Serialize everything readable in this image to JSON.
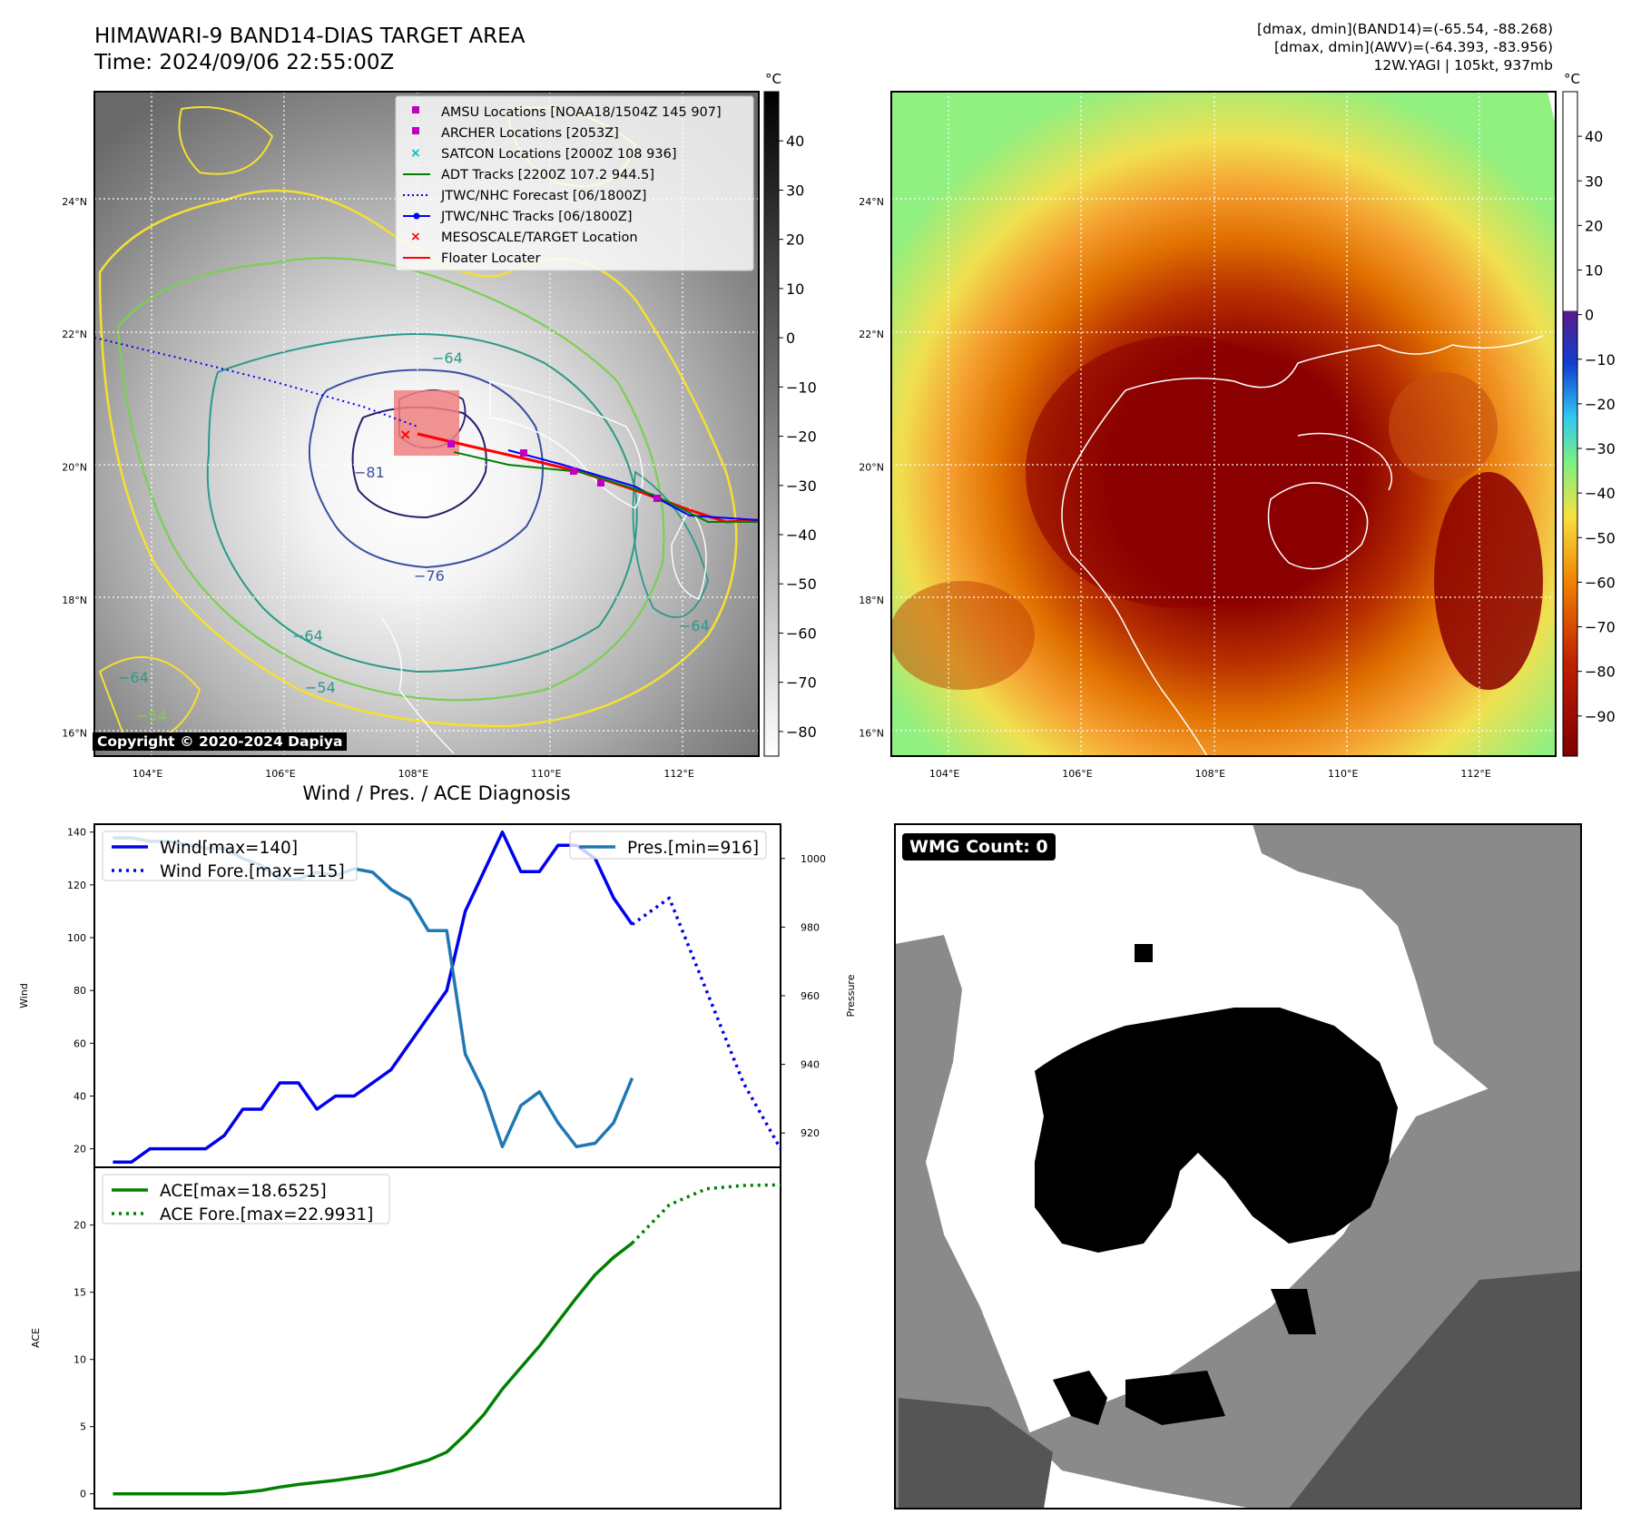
{
  "header": {
    "title_line1": "HIMAWARI-9 BAND14-DIAS TARGET AREA",
    "title_line2": "Time: 2024/09/06 22:55:00Z",
    "info_line1": "[dmax, dmin](BAND14)=(-65.54, -88.268)",
    "info_line2": "[dmax, dmin](AWV)=(-64.393, -83.956)",
    "info_line3": "12W.YAGI | 105kt, 937mb"
  },
  "map_axes": {
    "lat_labels": [
      "24°N",
      "22°N",
      "20°N",
      "18°N",
      "16°N"
    ],
    "lat_values": [
      24,
      22,
      20,
      18,
      16
    ],
    "lon_labels": [
      "104°E",
      "106°E",
      "108°E",
      "110°E",
      "112°E"
    ],
    "lon_values": [
      104,
      106,
      108,
      110,
      112
    ],
    "lon_range": [
      103.2,
      113.2
    ],
    "lat_range": [
      15.65,
      25.65
    ]
  },
  "ir_map": {
    "colorbar_unit": "°C",
    "colorbar_ticks": [
      "40",
      "30",
      "20",
      "10",
      "0",
      "−10",
      "−20",
      "−30",
      "−40",
      "−50",
      "−60",
      "−70",
      "−80"
    ],
    "colorbar_values": [
      40,
      30,
      20,
      10,
      0,
      -10,
      -20,
      -30,
      -40,
      -50,
      -60,
      -70,
      -80
    ],
    "colorbar_range": [
      -85,
      50
    ],
    "contour_labels": [
      "−64",
      "−81",
      "−76",
      "−64",
      "−54",
      "−64",
      "−64",
      "−54"
    ],
    "copyright": "Copyright © 2020-2024 Dapiya",
    "legend": [
      {
        "label": "AMSU Locations [NOAA18/1504Z 145 907]",
        "marker": "square",
        "color": "#c000c0"
      },
      {
        "label": "ARCHER Locations [2053Z]",
        "marker": "square",
        "color": "#c000c0"
      },
      {
        "label": "SATCON Locations [2000Z 108 936]",
        "marker": "x",
        "color": "#00c0c0"
      },
      {
        "label": "ADT Tracks [2200Z 107.2 944.5]",
        "marker": "line",
        "color": "#008000"
      },
      {
        "label": "JTWC/NHC Forecast [06/1800Z]",
        "marker": "dotted",
        "color": "#0000ff"
      },
      {
        "label": "JTWC/NHC Tracks [06/1800Z]",
        "marker": "line-dot",
        "color": "#0000ff"
      },
      {
        "label": "MESOSCALE/TARGET Location",
        "marker": "x",
        "color": "#ff0000"
      },
      {
        "label": "Floater Locater",
        "marker": "line",
        "color": "#ff0000"
      }
    ]
  },
  "awv_map": {
    "colorbar_unit": "°C",
    "colorbar_ticks": [
      "40",
      "30",
      "20",
      "10",
      "0",
      "−10",
      "−20",
      "−30",
      "−40",
      "−50",
      "−60",
      "−70",
      "−80",
      "−90"
    ],
    "colorbar_values": [
      40,
      30,
      20,
      10,
      0,
      -10,
      -20,
      -30,
      -40,
      -50,
      -60,
      -70,
      -80,
      -90
    ],
    "colorbar_range": [
      -99,
      50
    ]
  },
  "diagnosis": {
    "title": "Wind / Pres. / ACE Diagnosis"
  },
  "chart_data": [
    {
      "type": "line",
      "title": "Wind / Pres. / ACE Diagnosis",
      "ylabel": "Wind",
      "y2label": "Pressure",
      "ylim": [
        13,
        143
      ],
      "y2lim": [
        910,
        1010
      ],
      "y_ticks": [
        20,
        40,
        60,
        80,
        100,
        120,
        140
      ],
      "y2_ticks": [
        920,
        940,
        960,
        980,
        1000
      ],
      "series": [
        {
          "name": "Wind[max=140]",
          "axis": "left",
          "style": "solid",
          "color": "#0000ee",
          "values": [
            15,
            15,
            20,
            20,
            20,
            20,
            25,
            35,
            35,
            45,
            45,
            35,
            40,
            40,
            45,
            50,
            60,
            70,
            80,
            110,
            125,
            140,
            125,
            125,
            135,
            135,
            130,
            115,
            105
          ]
        },
        {
          "name": "Wind Fore.[max=115]",
          "axis": "left",
          "style": "dotted",
          "color": "#0000ee",
          "x_start": 28,
          "x_step": 2,
          "values": [
            105,
            115,
            80,
            45,
            20
          ]
        },
        {
          "name": "Pres.[min=916]",
          "axis": "right",
          "style": "solid",
          "color": "#1f77b4",
          "values": [
            1006,
            1006,
            1005,
            1005,
            1004,
            1003,
            1003,
            1000,
            998,
            994,
            994,
            996,
            995,
            997,
            996,
            991,
            988,
            979,
            979,
            943,
            932,
            916,
            928,
            932,
            923,
            916,
            917,
            923,
            936
          ]
        }
      ]
    },
    {
      "type": "line",
      "ylabel": "ACE",
      "ylim": [
        -1.1,
        24.3
      ],
      "y_ticks": [
        0,
        5,
        10,
        15,
        20
      ],
      "series": [
        {
          "name": "ACE[max=18.6525]",
          "style": "solid",
          "color": "#008000",
          "values": [
            0,
            0,
            0,
            0,
            0,
            0,
            0,
            0.1,
            0.25,
            0.5,
            0.7,
            0.85,
            1.0,
            1.2,
            1.4,
            1.7,
            2.1,
            2.5,
            3.1,
            4.4,
            5.9,
            7.8,
            9.4,
            11.0,
            12.8,
            14.6,
            16.3,
            17.6,
            18.65
          ]
        },
        {
          "name": "ACE Fore.[max=22.9931]",
          "style": "dotted",
          "color": "#008000",
          "x_start": 28,
          "x_step": 2,
          "values": [
            18.65,
            21.5,
            22.7,
            22.95,
            22.99
          ]
        }
      ]
    }
  ],
  "wmg": {
    "label": "WMG Count: 0"
  },
  "colors": {
    "wind": "#0000ee",
    "pressure": "#1f77b4",
    "ace": "#008000",
    "grid": "#ffffff"
  }
}
